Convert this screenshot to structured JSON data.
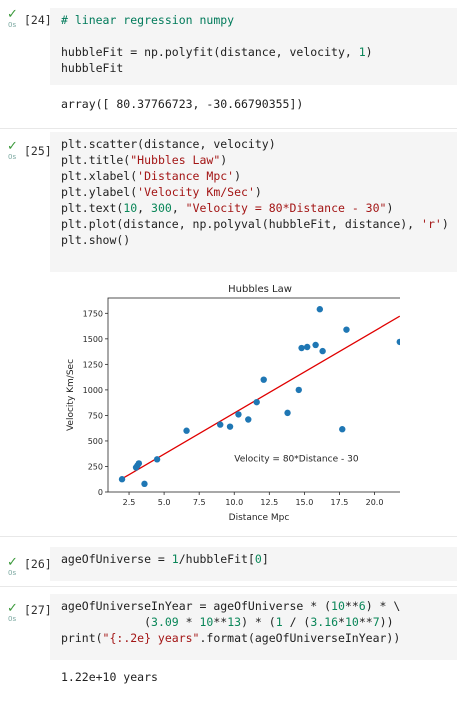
{
  "cells": [
    {
      "prompt": "[24]",
      "duration": "0s",
      "lines": [
        [
          {
            "t": "# linear regression numpy",
            "c": "cm"
          }
        ],
        [],
        [
          {
            "t": "hubbleFit = np.polyfit(distance, velocity, "
          },
          {
            "t": "1",
            "c": "num"
          },
          {
            "t": ")"
          }
        ],
        [
          {
            "t": "hubbleFit"
          }
        ]
      ],
      "output": "array([ 80.37766723, -30.66790355])"
    },
    {
      "prompt": "[25]",
      "duration": "0s",
      "lines": [
        [
          {
            "t": "plt.scatter(distance, velocity)"
          }
        ],
        [
          {
            "t": "plt.title("
          },
          {
            "t": "\"Hubbles Law\"",
            "c": "str"
          },
          {
            "t": ")"
          }
        ],
        [
          {
            "t": "plt.xlabel("
          },
          {
            "t": "'Distance Mpc'",
            "c": "str"
          },
          {
            "t": ")"
          }
        ],
        [
          {
            "t": "plt.ylabel("
          },
          {
            "t": "'Velocity Km/Sec'",
            "c": "str"
          },
          {
            "t": ")"
          }
        ],
        [
          {
            "t": "plt.text("
          },
          {
            "t": "10",
            "c": "num"
          },
          {
            "t": ", "
          },
          {
            "t": "300",
            "c": "num"
          },
          {
            "t": ", "
          },
          {
            "t": "\"Velocity = 80*Distance - 30\"",
            "c": "str"
          },
          {
            "t": ")"
          }
        ],
        [
          {
            "t": "plt.plot(distance, np.polyval(hubbleFit, distance), "
          },
          {
            "t": "'r'",
            "c": "str"
          },
          {
            "t": ")"
          }
        ],
        [
          {
            "t": "plt.show()"
          }
        ]
      ]
    },
    {
      "prompt": "[26]",
      "duration": "0s",
      "lines": [
        [
          {
            "t": "ageOfUniverse = "
          },
          {
            "t": "1",
            "c": "num"
          },
          {
            "t": "/hubbleFit["
          },
          {
            "t": "0",
            "c": "num"
          },
          {
            "t": "]"
          }
        ]
      ]
    },
    {
      "prompt": "[27]",
      "duration": "0s",
      "lines": [
        [
          {
            "t": "ageOfUniverseInYear = ageOfUniverse * ("
          },
          {
            "t": "10",
            "c": "num"
          },
          {
            "t": "**"
          },
          {
            "t": "6",
            "c": "num"
          },
          {
            "t": ") * \\"
          }
        ],
        [
          {
            "t": "            ("
          },
          {
            "t": "3.09",
            "c": "num"
          },
          {
            "t": " * "
          },
          {
            "t": "10",
            "c": "num"
          },
          {
            "t": "**"
          },
          {
            "t": "13",
            "c": "num"
          },
          {
            "t": ") * ("
          },
          {
            "t": "1",
            "c": "num"
          },
          {
            "t": " / ("
          },
          {
            "t": "3.16",
            "c": "num"
          },
          {
            "t": "*"
          },
          {
            "t": "10",
            "c": "num"
          },
          {
            "t": "**"
          },
          {
            "t": "7",
            "c": "num"
          },
          {
            "t": "))"
          }
        ],
        [
          {
            "t": "print("
          },
          {
            "t": "\"{:.2e} years\"",
            "c": "str"
          },
          {
            "t": ".format(ageOfUniverseInYear))"
          }
        ]
      ],
      "output": "1.22e+10 years"
    }
  ],
  "colors": {
    "points": "#1f77b4",
    "fit_line": "#e00000",
    "code_bg": "#f5f5f5",
    "check": "#3c9a3c"
  },
  "chart_data": {
    "type": "scatter",
    "title": "Hubbles Law",
    "xlabel": "Distance Mpc",
    "ylabel": "Velocity Km/Sec",
    "xlim": [
      1.0,
      22.6
    ],
    "ylim": [
      0,
      1900
    ],
    "xticks": [
      "2.5",
      "5.0",
      "7.5",
      "10.0",
      "12.5",
      "15.0",
      "17.5",
      "20.0",
      "22.5"
    ],
    "yticks": [
      "0",
      "250",
      "500",
      "750",
      "1000",
      "1250",
      "1500",
      "1750"
    ],
    "annotation": {
      "text": "Velocity = 80*Distance - 30",
      "x": 10,
      "y": 300
    },
    "series": [
      {
        "type": "scatter",
        "x": [
          2.0,
          3.0,
          3.1,
          3.2,
          3.6,
          4.5,
          6.6,
          9.0,
          9.7,
          10.3,
          11.0,
          11.6,
          12.1,
          13.8,
          14.6,
          14.8,
          15.2,
          15.8,
          16.1,
          16.3,
          17.7,
          18.0,
          21.8
        ],
        "y": [
          125,
          240,
          260,
          280,
          80,
          320,
          600,
          660,
          640,
          760,
          710,
          880,
          1100,
          775,
          1000,
          1410,
          1420,
          1440,
          1790,
          1380,
          615,
          1590,
          1470
        ]
      },
      {
        "type": "line",
        "x": [
          2.0,
          21.8
        ],
        "y": [
          130,
          1722
        ]
      }
    ]
  }
}
